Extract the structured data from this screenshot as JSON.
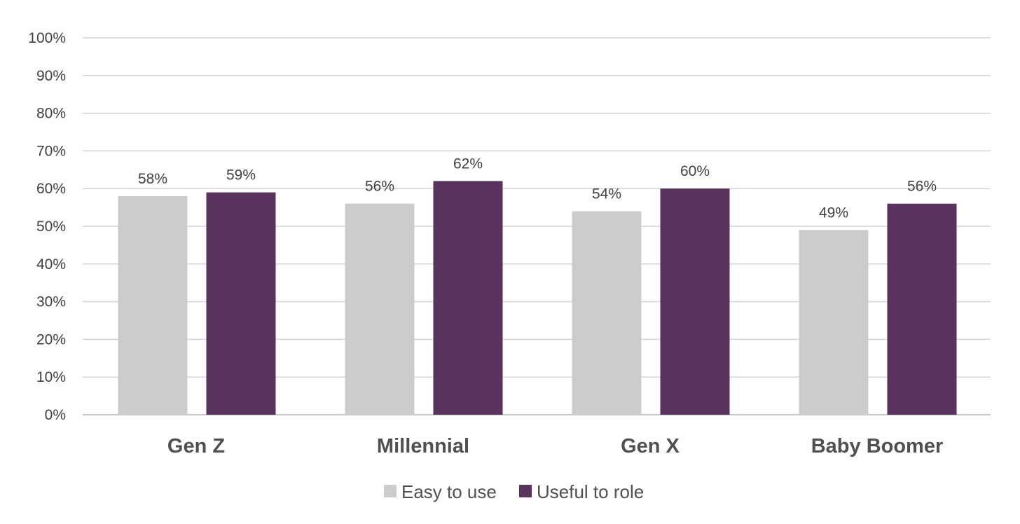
{
  "chart_data": {
    "type": "bar",
    "categories": [
      "Gen Z",
      "Millennial",
      "Gen X",
      "Baby Boomer"
    ],
    "series": [
      {
        "name": "Easy to use",
        "color": "#cccccc",
        "values": [
          58,
          56,
          54,
          49
        ],
        "labels": [
          "58%",
          "56%",
          "54%",
          "49%"
        ]
      },
      {
        "name": "Useful to role",
        "color": "#5a325e",
        "values": [
          59,
          62,
          60,
          56
        ],
        "labels": [
          "59%",
          "62%",
          "60%",
          "56%"
        ]
      }
    ],
    "y_ticks": [
      "0%",
      "10%",
      "20%",
      "30%",
      "40%",
      "50%",
      "60%",
      "70%",
      "80%",
      "90%",
      "100%"
    ],
    "ylim": [
      0,
      100
    ],
    "grid": true,
    "legend_position": "bottom-center"
  }
}
